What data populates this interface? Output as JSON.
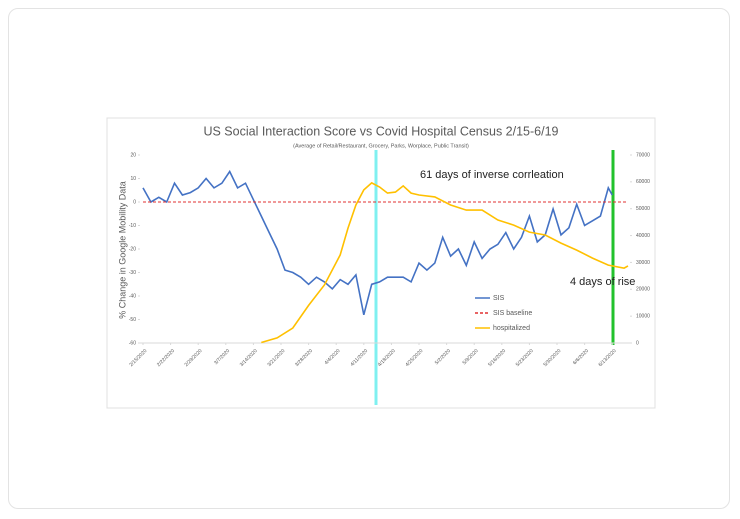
{
  "chart_data": {
    "type": "line",
    "title": "US Social Interaction Score vs Covid Hospital Census 2/15-6/19",
    "subtitle": "(Average of Retail/Restaurant, Grocery, Parks, Worplace, Public Transit)",
    "y_label": "% Change in Google Mobility Data",
    "annotations": [
      "61 days of inverse corrleation",
      "4 days of rise"
    ],
    "xlim": [
      "2/15/2020",
      "6/17/2020"
    ],
    "xticks": [
      "2/15/2020",
      "2/22/2020",
      "2/29/2020",
      "3/7/2020",
      "3/14/2020",
      "3/21/2020",
      "3/28/2020",
      "4/4/2020",
      "4/11/2020",
      "4/18/2020",
      "4/25/2020",
      "5/2/2020",
      "5/9/2020",
      "5/16/2020",
      "5/23/2020",
      "5/30/2020",
      "6/6/2020",
      "6/13/2020"
    ],
    "ylim": [
      -60,
      20
    ],
    "yticks": [
      -60,
      -50,
      -40,
      -30,
      -20,
      -10,
      0,
      10,
      20
    ],
    "y2lim": [
      0,
      70000
    ],
    "y2ticks": [
      0,
      10000,
      20000,
      30000,
      40000,
      50000,
      60000,
      70000
    ],
    "series": [
      {
        "name": "SIS",
        "color": "#4472c4",
        "x": [
          "2/15/2020",
          "2/17/2020",
          "2/19/2020",
          "2/21/2020",
          "2/23/2020",
          "2/25/2020",
          "2/27/2020",
          "2/29/2020",
          "3/2/2020",
          "3/4/2020",
          "3/6/2020",
          "3/8/2020",
          "3/10/2020",
          "3/12/2020",
          "3/14/2020",
          "3/16/2020",
          "3/18/2020",
          "3/20/2020",
          "3/22/2020",
          "3/24/2020",
          "3/26/2020",
          "3/28/2020",
          "3/30/2020",
          "4/1/2020",
          "4/3/2020",
          "4/5/2020",
          "4/7/2020",
          "4/9/2020",
          "4/11/2020",
          "4/13/2020",
          "4/15/2020",
          "4/17/2020",
          "4/19/2020",
          "4/21/2020",
          "4/23/2020",
          "4/25/2020",
          "4/27/2020",
          "4/29/2020",
          "5/1/2020",
          "5/3/2020",
          "5/5/2020",
          "5/7/2020",
          "5/9/2020",
          "5/11/2020",
          "5/13/2020",
          "5/15/2020",
          "5/17/2020",
          "5/19/2020",
          "5/21/2020",
          "5/23/2020",
          "5/25/2020",
          "5/27/2020",
          "5/29/2020",
          "5/31/2020",
          "6/2/2020",
          "6/4/2020",
          "6/6/2020",
          "6/8/2020",
          "6/10/2020",
          "6/12/2020",
          "6/13/2020"
        ],
        "values": [
          6,
          0,
          2,
          0,
          8,
          3,
          4,
          6,
          10,
          6,
          8,
          13,
          6,
          8,
          1,
          -6,
          -13,
          -20,
          -29,
          -30,
          -32,
          -35,
          -32,
          -34,
          -37,
          -33,
          -35,
          -31,
          -48,
          -35,
          -34,
          -32,
          -32,
          -32,
          -34,
          -26,
          -29,
          -26,
          -15,
          -23,
          -20,
          -27,
          -17,
          -24,
          -20,
          -18,
          -13,
          -20,
          -15,
          -6,
          -17,
          -14,
          -3,
          -14,
          -11,
          -1,
          -10,
          -8,
          -6,
          6,
          3
        ]
      },
      {
        "name": "SIS baseline",
        "color": "#e03030",
        "dashed": true,
        "x": [
          "2/15/2020",
          "6/17/2020"
        ],
        "values": [
          0,
          0
        ]
      },
      {
        "name": "hospitalized",
        "color": "#ffc000",
        "axis": "y2",
        "x": [
          "3/16/2020",
          "3/20/2020",
          "3/24/2020",
          "3/28/2020",
          "4/1/2020",
          "4/5/2020",
          "4/7/2020",
          "4/9/2020",
          "4/11/2020",
          "4/13/2020",
          "4/15/2020",
          "4/17/2020",
          "4/19/2020",
          "4/21/2020",
          "4/23/2020",
          "4/25/2020",
          "4/29/2020",
          "5/3/2020",
          "5/7/2020",
          "5/11/2020",
          "5/15/2020",
          "5/19/2020",
          "5/23/2020",
          "5/27/2020",
          "5/31/2020",
          "6/4/2020",
          "6/8/2020",
          "6/12/2020",
          "6/16/2020",
          "6/17/2020"
        ],
        "values": [
          200,
          1900,
          5600,
          14000,
          21600,
          32800,
          42800,
          51400,
          57000,
          59600,
          58100,
          55800,
          56200,
          58500,
          55800,
          55100,
          54400,
          51400,
          49500,
          49500,
          45800,
          43900,
          41300,
          40200,
          37200,
          34600,
          31600,
          29000,
          27900,
          28700
        ]
      }
    ]
  }
}
